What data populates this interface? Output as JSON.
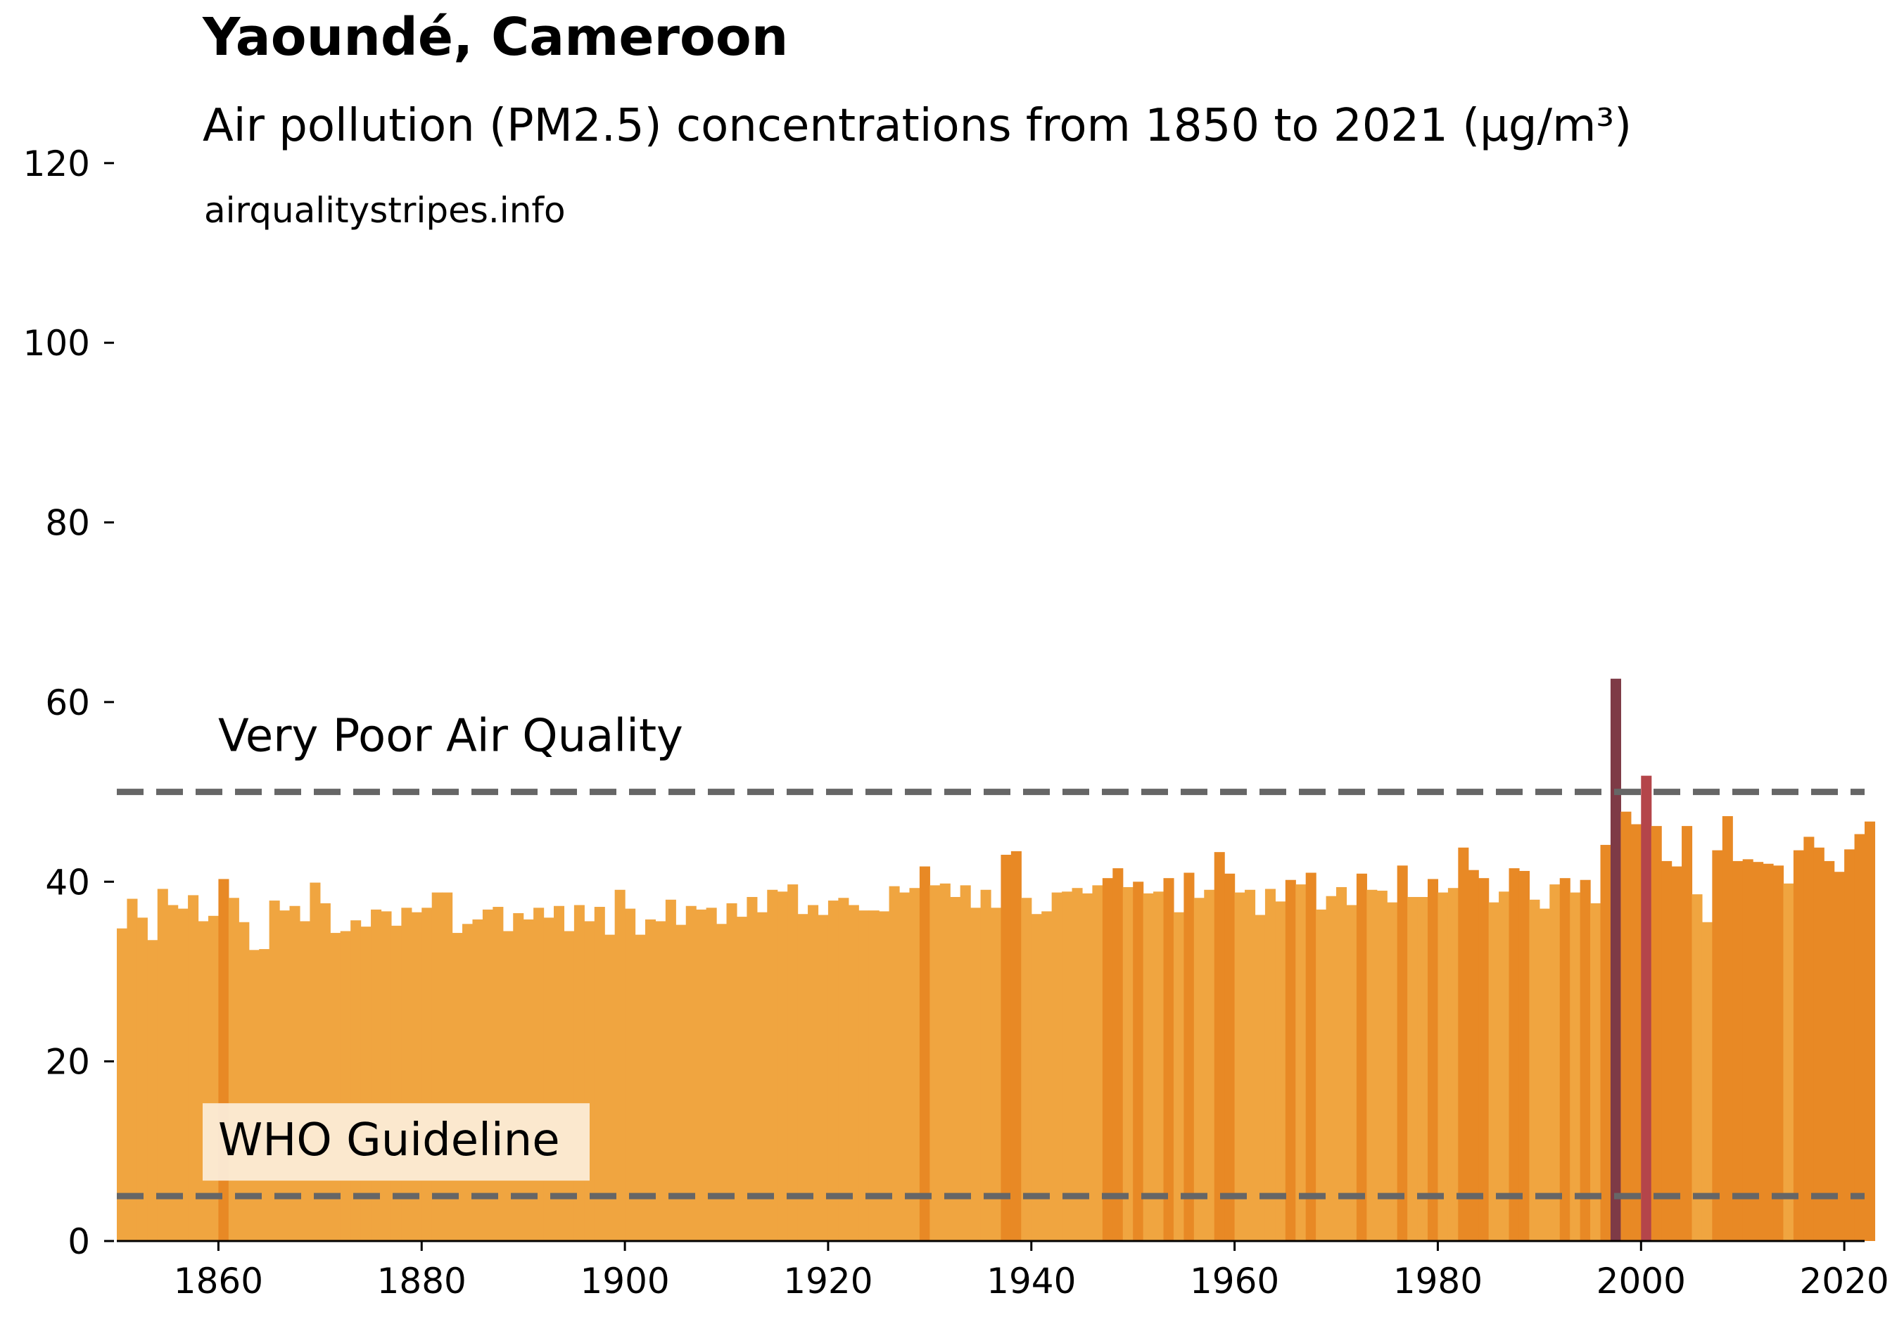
{
  "chart_data": {
    "type": "bar",
    "title": "Yaoundé, Cameroon",
    "subtitle": "Air pollution (PM2.5) concentrations from 1850 to 2021 (µg/m³)",
    "source": "airqualitystripes.info",
    "xlabel": "",
    "ylabel": "",
    "x_start": 1850,
    "x_end": 2021,
    "xlim": [
      1850,
      2022
    ],
    "ylim": [
      0,
      125
    ],
    "yticks": [
      0,
      20,
      40,
      60,
      80,
      100,
      120
    ],
    "xticks": [
      1860,
      1880,
      1900,
      1920,
      1940,
      1960,
      1980,
      2000,
      2020
    ],
    "grid": false,
    "reference_lines": [
      {
        "label": "Very Poor Air Quality",
        "value": 50,
        "color": "#666666"
      },
      {
        "label": "WHO Guideline",
        "value": 5,
        "color": "#666666"
      }
    ],
    "values": [
      34.8,
      38.1,
      36.0,
      33.5,
      39.2,
      37.4,
      37.0,
      38.5,
      35.6,
      36.2,
      40.3,
      38.2,
      35.5,
      32.4,
      32.5,
      37.9,
      36.8,
      37.3,
      35.6,
      39.9,
      37.6,
      34.3,
      34.5,
      35.7,
      35.0,
      36.9,
      36.7,
      35.1,
      37.1,
      36.6,
      37.1,
      38.8,
      38.8,
      34.3,
      35.3,
      35.8,
      36.9,
      37.2,
      34.5,
      36.5,
      35.8,
      37.1,
      36.0,
      37.3,
      34.5,
      37.4,
      35.6,
      37.2,
      34.1,
      39.1,
      37.0,
      34.1,
      35.8,
      35.6,
      38.0,
      35.2,
      37.3,
      36.9,
      37.1,
      35.3,
      37.6,
      36.1,
      38.3,
      36.6,
      39.1,
      38.9,
      39.7,
      36.4,
      37.4,
      36.3,
      37.9,
      38.2,
      37.4,
      36.8,
      36.8,
      36.7,
      39.5,
      38.8,
      39.3,
      41.7,
      39.6,
      39.8,
      38.3,
      39.6,
      37.1,
      39.1,
      37.1,
      43.0,
      43.4,
      38.2,
      36.4,
      36.7,
      38.8,
      38.9,
      39.3,
      38.7,
      39.6,
      40.4,
      41.5,
      39.4,
      40.0,
      38.7,
      38.9,
      40.4,
      36.6,
      41.0,
      38.2,
      39.1,
      43.3,
      40.9,
      38.8,
      39.1,
      36.3,
      39.2,
      37.8,
      40.2,
      39.7,
      41.0,
      36.9,
      38.4,
      39.4,
      37.4,
      40.9,
      39.1,
      39.0,
      37.7,
      41.8,
      38.3,
      38.3,
      40.3,
      38.8,
      39.3,
      43.8,
      41.3,
      40.4,
      37.7,
      38.9,
      41.5,
      41.2,
      38.0,
      37.0,
      39.7,
      40.4,
      38.8,
      40.2,
      37.6,
      44.1,
      62.6,
      47.8,
      46.4,
      51.8,
      46.2,
      42.3,
      41.7,
      46.2,
      38.6,
      35.5,
      43.5,
      47.3,
      42.3,
      42.5,
      42.2,
      42.0,
      41.8,
      39.8,
      43.5,
      45.0,
      43.8,
      42.3,
      41.1,
      43.6,
      45.3,
      46.7
    ]
  }
}
